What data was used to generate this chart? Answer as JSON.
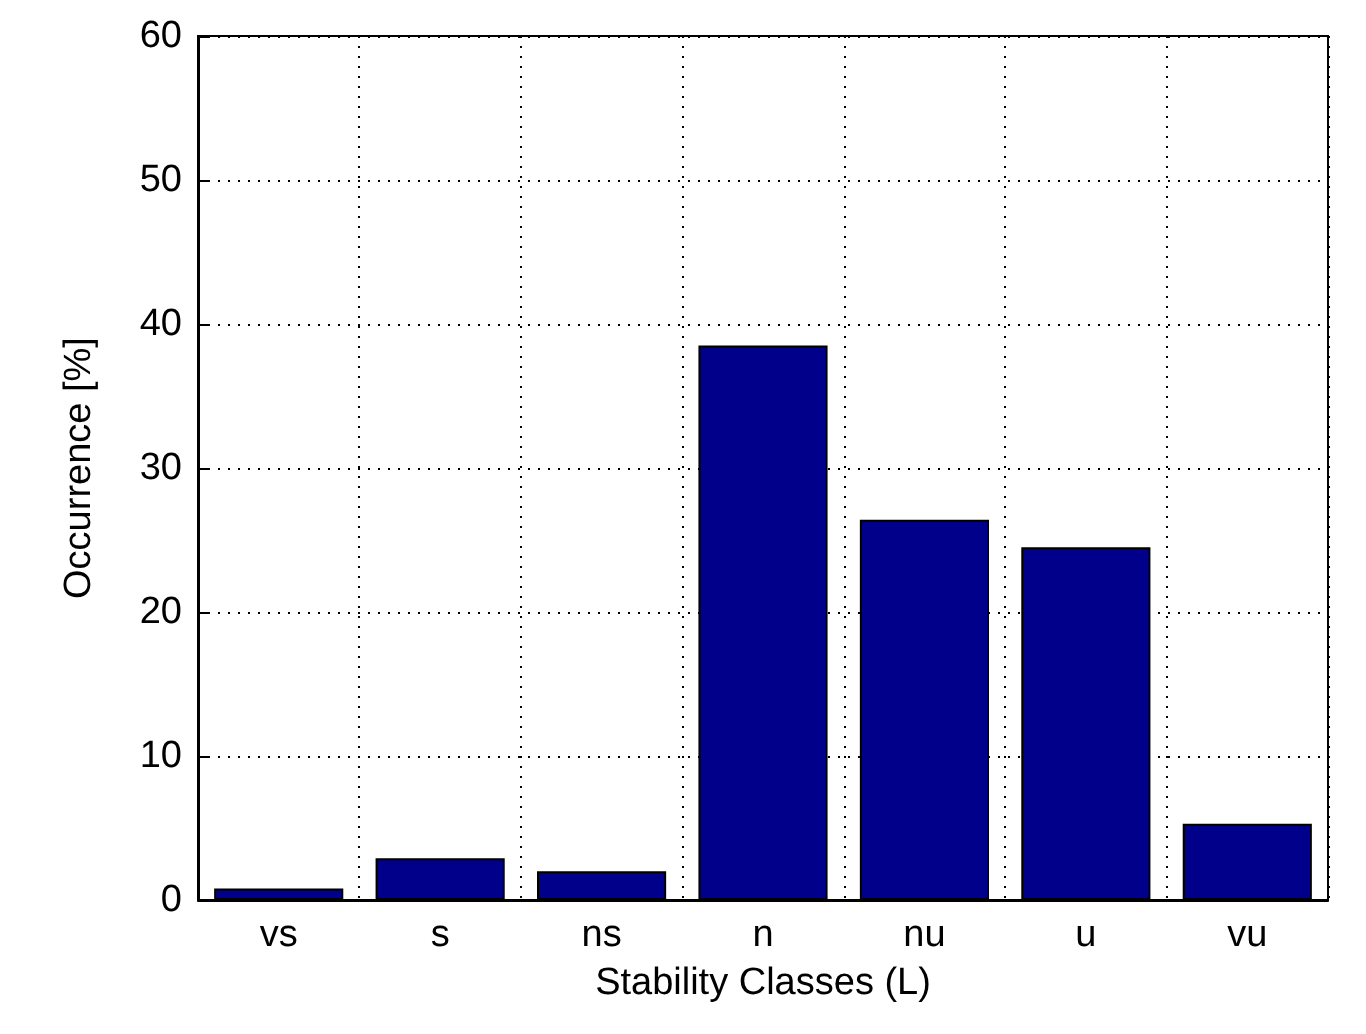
{
  "chart_data": {
    "type": "bar",
    "xlabel": "Stability Classes (L)",
    "ylabel": "Occurrence [%]",
    "categories": [
      "vs",
      "s",
      "ns",
      "n",
      "nu",
      "u",
      "vu"
    ],
    "values": [
      0.8,
      2.9,
      2.0,
      38.5,
      26.4,
      24.5,
      5.3
    ],
    "color": "#00008b",
    "ylim": [
      0,
      60
    ],
    "yticks": [
      0,
      10,
      20,
      30,
      40,
      50,
      60
    ],
    "grid": true
  }
}
